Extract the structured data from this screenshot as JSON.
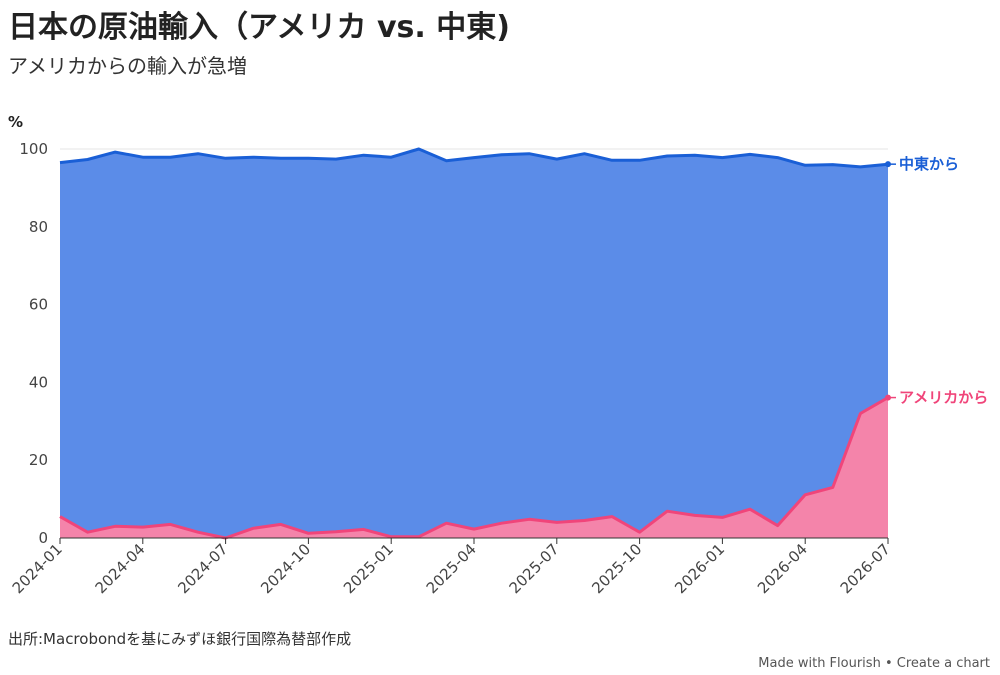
{
  "title": "日本の原油輸入（アメリカ vs. 中東)",
  "subtitle": "アメリカからの輸入が急増",
  "source": "出所:Macrobondを基にみずほ銀行国際為替部作成",
  "footer": {
    "made_with": "Made with Flourish",
    "separator": "•",
    "create": "Create a chart"
  },
  "chart_data": {
    "type": "area",
    "ylabel": "%",
    "ylim": [
      0,
      100
    ],
    "yticks": [
      0,
      20,
      40,
      60,
      80,
      100
    ],
    "xticks": [
      "2024-01",
      "2024-04",
      "2024-07",
      "2024-10",
      "2025-01",
      "2025-04",
      "2025-07",
      "2025-10",
      "2026-01",
      "2026-04",
      "2026-07"
    ],
    "x": [
      "2024-01",
      "2024-02",
      "2024-03",
      "2024-04",
      "2024-05",
      "2024-06",
      "2024-07",
      "2024-08",
      "2024-09",
      "2024-10",
      "2024-11",
      "2024-12",
      "2025-01",
      "2025-02",
      "2025-03",
      "2025-04",
      "2025-05",
      "2025-06",
      "2025-07",
      "2025-08",
      "2025-09",
      "2025-10",
      "2025-11",
      "2025-12",
      "2026-01",
      "2026-02",
      "2026-03",
      "2026-04",
      "2026-05",
      "2026-06",
      "2026-07"
    ],
    "grid": true,
    "series": [
      {
        "name": "中東から",
        "color": "#1a5fd6",
        "fill": "#5b8ce8",
        "values": [
          96.5,
          97.3,
          99.2,
          97.9,
          97.9,
          98.8,
          97.6,
          97.9,
          97.6,
          97.6,
          97.4,
          98.4,
          97.9,
          100.0,
          97.0,
          97.8,
          98.5,
          98.8,
          97.4,
          98.8,
          97.1,
          97.1,
          98.2,
          98.4,
          97.8,
          98.6,
          97.8,
          95.8,
          96.0,
          95.4,
          96.1
        ]
      },
      {
        "name": "アメリカから",
        "color": "#f0457a",
        "fill": "#f484aa",
        "values": [
          5.5,
          1.5,
          3.0,
          2.8,
          3.5,
          1.5,
          0.0,
          2.5,
          3.5,
          1.2,
          1.6,
          2.2,
          0.3,
          0.3,
          3.8,
          2.3,
          3.8,
          4.8,
          4.0,
          4.5,
          5.5,
          1.5,
          6.9,
          5.8,
          5.3,
          7.4,
          3.2,
          11.1,
          13.0,
          32.0,
          36.1
        ]
      }
    ]
  }
}
